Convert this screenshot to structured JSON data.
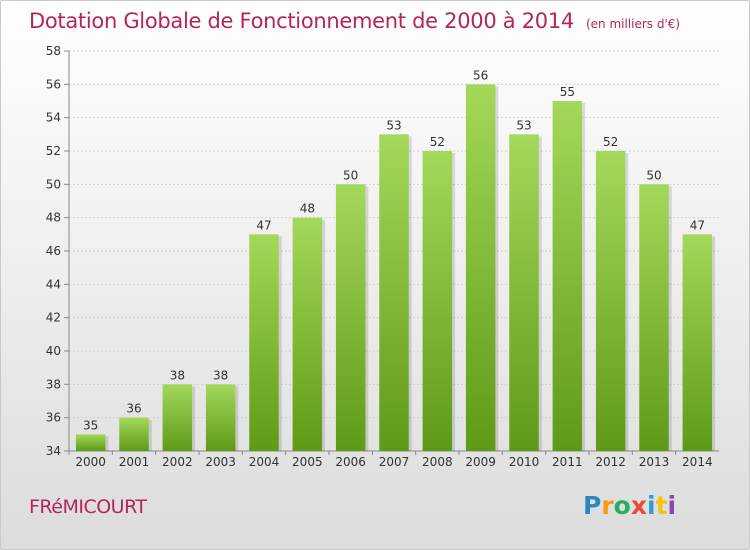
{
  "title": "Dotation Globale de Fonctionnement de 2000 à 2014",
  "unit": "(en milliers d'€)",
  "commune": "FRéMICOURT",
  "logo": {
    "letters": [
      "P",
      "r",
      "o",
      "x",
      "i",
      "t",
      "i"
    ],
    "colors": [
      "#2e86c1",
      "#f39c12",
      "#27ae60",
      "#e74c3c",
      "#3498db",
      "#f1c40f",
      "#8e44ad"
    ]
  },
  "chart_data": {
    "type": "bar",
    "categories": [
      "2000",
      "2001",
      "2002",
      "2003",
      "2004",
      "2005",
      "2006",
      "2007",
      "2008",
      "2009",
      "2010",
      "2011",
      "2012",
      "2013",
      "2014"
    ],
    "values": [
      35,
      36,
      38,
      38,
      47,
      48,
      50,
      53,
      52,
      56,
      53,
      55,
      52,
      50,
      47
    ],
    "ylim": [
      34,
      58
    ],
    "yticks": [
      34,
      36,
      38,
      40,
      42,
      44,
      46,
      48,
      50,
      52,
      54,
      56,
      58
    ],
    "grid": true,
    "bar_color_top": "#a4d85a",
    "bar_color_bottom": "#5e9a17"
  }
}
